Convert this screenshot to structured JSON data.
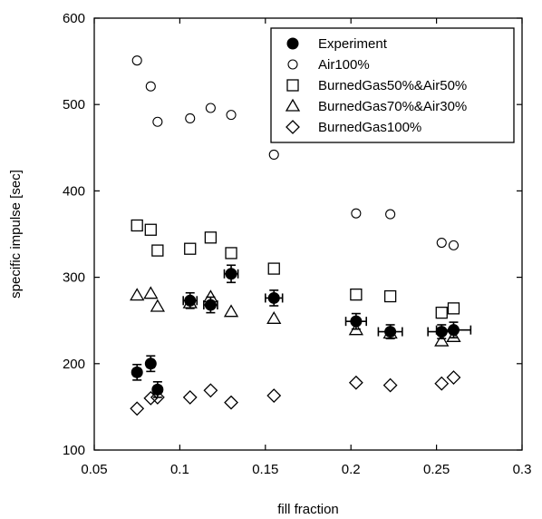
{
  "chart_data": {
    "type": "scatter",
    "xlabel": "fill fraction",
    "ylabel": "specific impulse [sec]",
    "xlim": [
      0.05,
      0.3
    ],
    "ylim": [
      100,
      600
    ],
    "xticks": [
      0.05,
      0.1,
      0.15,
      0.2,
      0.25,
      0.3
    ],
    "xtick_labels": [
      "0.05",
      "0.1",
      "0.15",
      "0.2",
      "0.25",
      "0.3"
    ],
    "yticks": [
      100,
      200,
      300,
      400,
      500,
      600
    ],
    "ytick_labels": [
      "100",
      "200",
      "300",
      "400",
      "500",
      "600"
    ],
    "grid": false,
    "legend_position": "top-right",
    "series": [
      {
        "name": "Experiment",
        "marker": "filled-circle",
        "points": [
          {
            "x": 0.075,
            "y": 190,
            "yerr": 9,
            "xerr": 0.002
          },
          {
            "x": 0.083,
            "y": 200,
            "yerr": 9,
            "xerr": 0.002
          },
          {
            "x": 0.087,
            "y": 170,
            "yerr": 9,
            "xerr": 0.002
          },
          {
            "x": 0.106,
            "y": 273,
            "yerr": 9,
            "xerr": 0.004
          },
          {
            "x": 0.118,
            "y": 268,
            "yerr": 9,
            "xerr": 0.004
          },
          {
            "x": 0.13,
            "y": 304,
            "yerr": 10,
            "xerr": 0.004
          },
          {
            "x": 0.155,
            "y": 276,
            "yerr": 9,
            "xerr": 0.005
          },
          {
            "x": 0.203,
            "y": 249,
            "yerr": 9,
            "xerr": 0.006
          },
          {
            "x": 0.223,
            "y": 237,
            "yerr": 8,
            "xerr": 0.007
          },
          {
            "x": 0.253,
            "y": 237,
            "yerr": 8,
            "xerr": 0.008
          },
          {
            "x": 0.26,
            "y": 239,
            "yerr": 9,
            "xerr": 0.01
          }
        ]
      },
      {
        "name": "Air100%",
        "marker": "open-circle",
        "points": [
          {
            "x": 0.075,
            "y": 551
          },
          {
            "x": 0.083,
            "y": 521
          },
          {
            "x": 0.087,
            "y": 480
          },
          {
            "x": 0.106,
            "y": 484
          },
          {
            "x": 0.118,
            "y": 496
          },
          {
            "x": 0.13,
            "y": 488
          },
          {
            "x": 0.155,
            "y": 442
          },
          {
            "x": 0.203,
            "y": 374
          },
          {
            "x": 0.223,
            "y": 373
          },
          {
            "x": 0.253,
            "y": 340
          },
          {
            "x": 0.26,
            "y": 337
          }
        ]
      },
      {
        "name": "BurnedGas50%&Air50%",
        "marker": "open-square",
        "points": [
          {
            "x": 0.075,
            "y": 360
          },
          {
            "x": 0.083,
            "y": 355
          },
          {
            "x": 0.087,
            "y": 331
          },
          {
            "x": 0.106,
            "y": 333
          },
          {
            "x": 0.118,
            "y": 346
          },
          {
            "x": 0.13,
            "y": 328
          },
          {
            "x": 0.155,
            "y": 310
          },
          {
            "x": 0.203,
            "y": 280
          },
          {
            "x": 0.223,
            "y": 278
          },
          {
            "x": 0.253,
            "y": 259
          },
          {
            "x": 0.26,
            "y": 264
          }
        ]
      },
      {
        "name": "BurnedGas70%&Air30%",
        "marker": "open-triangle",
        "points": [
          {
            "x": 0.075,
            "y": 279
          },
          {
            "x": 0.083,
            "y": 281
          },
          {
            "x": 0.087,
            "y": 266
          },
          {
            "x": 0.106,
            "y": 270
          },
          {
            "x": 0.118,
            "y": 277
          },
          {
            "x": 0.13,
            "y": 260
          },
          {
            "x": 0.155,
            "y": 252
          },
          {
            "x": 0.203,
            "y": 239
          },
          {
            "x": 0.223,
            "y": 235
          },
          {
            "x": 0.253,
            "y": 226
          },
          {
            "x": 0.26,
            "y": 231
          }
        ]
      },
      {
        "name": "BurnedGas100%",
        "marker": "open-diamond",
        "points": [
          {
            "x": 0.075,
            "y": 148
          },
          {
            "x": 0.083,
            "y": 160
          },
          {
            "x": 0.087,
            "y": 161
          },
          {
            "x": 0.106,
            "y": 161
          },
          {
            "x": 0.118,
            "y": 169
          },
          {
            "x": 0.13,
            "y": 155
          },
          {
            "x": 0.155,
            "y": 163
          },
          {
            "x": 0.203,
            "y": 178
          },
          {
            "x": 0.223,
            "y": 175
          },
          {
            "x": 0.253,
            "y": 177
          },
          {
            "x": 0.26,
            "y": 184
          }
        ]
      }
    ]
  }
}
